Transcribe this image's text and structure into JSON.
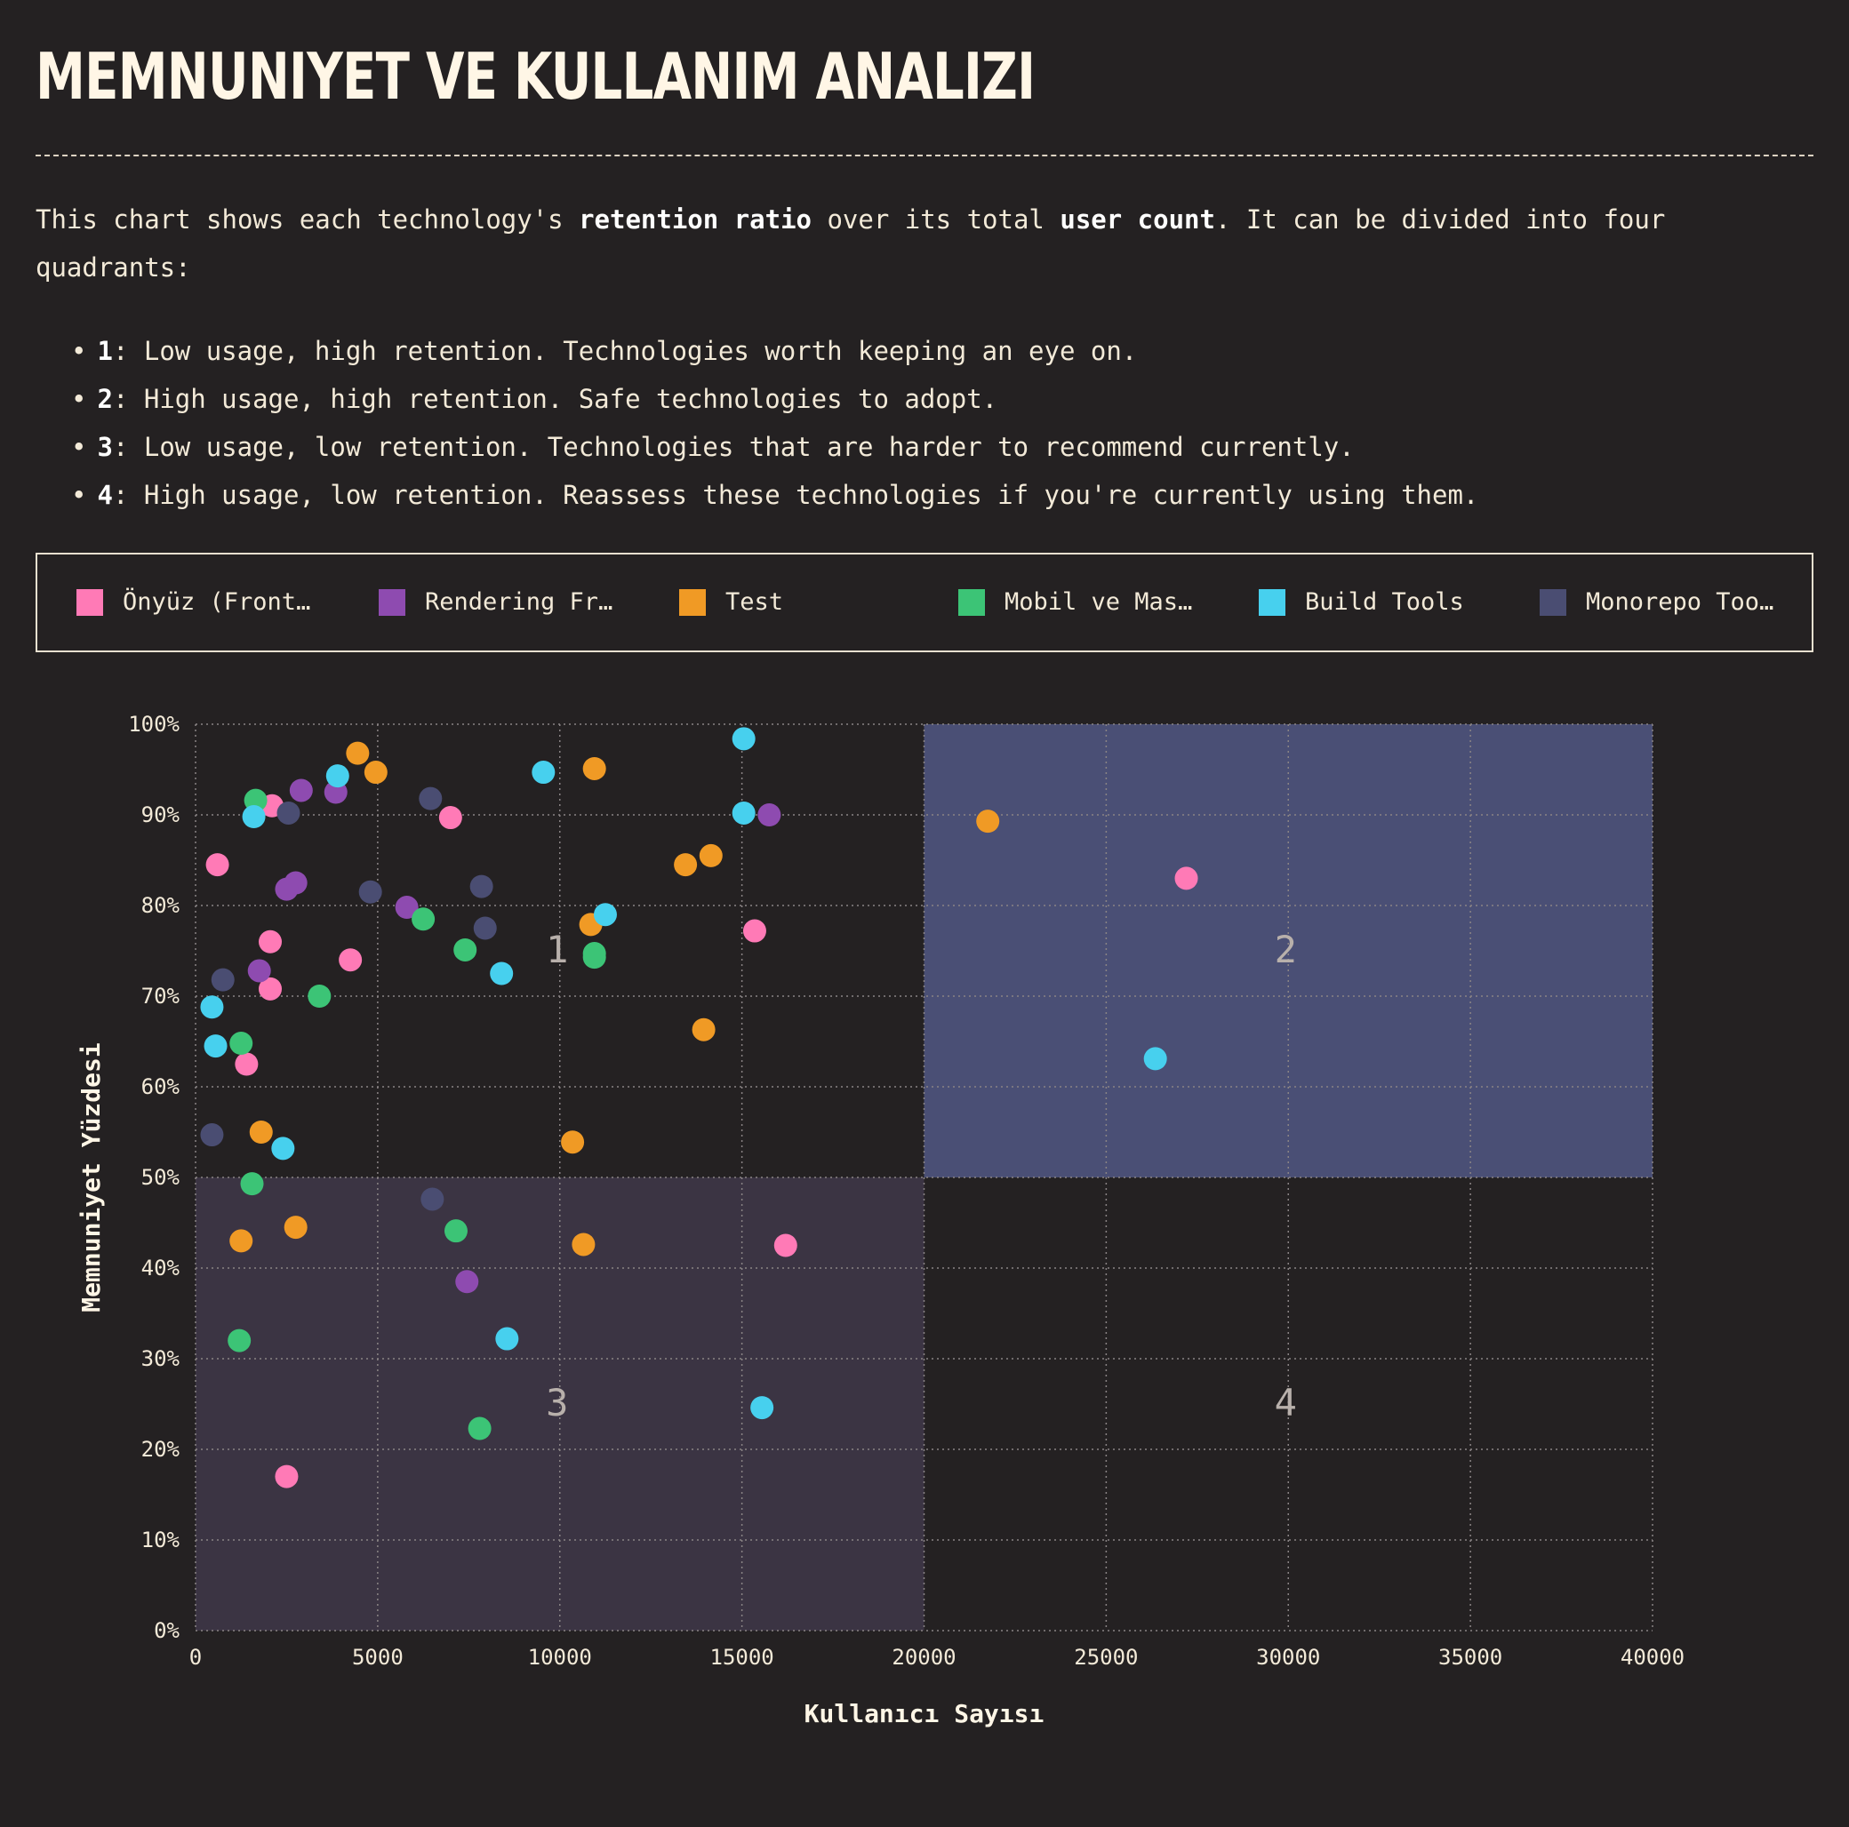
{
  "title": "MEMNUNIYET VE KULLANIM ANALIZI",
  "description": {
    "p1": "This chart shows each technology's ",
    "b1": "retention ratio",
    "p2": " over its total ",
    "b2": "user count",
    "p3": ". It can be divided into four quadrants:"
  },
  "bullets": [
    {
      "num": "1",
      "text": ": Low usage, high retention. Technologies worth keeping an eye on."
    },
    {
      "num": "2",
      "text": ": High usage, high retention. Safe technologies to adopt."
    },
    {
      "num": "3",
      "text": ": Low usage, low retention. Technologies that are harder to recommend currently."
    },
    {
      "num": "4",
      "text": ": High usage, low retention. Reassess these technologies if you're currently using them."
    }
  ],
  "legend": [
    {
      "label": "Önyüz (Front…",
      "color": "#ff7ab6"
    },
    {
      "label": "Rendering Fr…",
      "color": "#8e4bb0"
    },
    {
      "label": "Test",
      "color": "#f09a25"
    },
    {
      "label": "Mobil ve Mas…",
      "color": "#3cc476"
    },
    {
      "label": "Build Tools",
      "color": "#47d0ee"
    },
    {
      "label": "Monorepo Too…",
      "color": "#4a4d72"
    }
  ],
  "chart_data": {
    "type": "scatter",
    "xlabel": "Kullanıcı Sayısı",
    "ylabel": "Memnuniyet Yüzdesi",
    "xlim": [
      0,
      40000
    ],
    "ylim": [
      0,
      100
    ],
    "xticks": [
      "0",
      "5000",
      "10000",
      "15000",
      "20000",
      "25000",
      "30000",
      "35000",
      "40000"
    ],
    "yticks": [
      "0%",
      "10%",
      "20%",
      "30%",
      "40%",
      "50%",
      "60%",
      "70%",
      "80%",
      "90%",
      "100%"
    ],
    "grid": true,
    "quadrant_labels": [
      "1",
      "2",
      "3",
      "4"
    ],
    "quadrant_colors": {
      "q2": "#4a4f75",
      "q3": "#3b3443"
    },
    "series": [
      {
        "name": "Önyüz (Front…",
        "color": "#ff7ab6",
        "points": [
          [
            600,
            84.5
          ],
          [
            2100,
            91
          ],
          [
            2050,
            76
          ],
          [
            2050,
            70.8
          ],
          [
            1400,
            62.5
          ],
          [
            4250,
            74
          ],
          [
            7000,
            89.7
          ],
          [
            15350,
            77.2
          ],
          [
            27200,
            83
          ],
          [
            16200,
            42.5
          ],
          [
            2500,
            17
          ]
        ]
      },
      {
        "name": "Rendering Fr…",
        "color": "#8e4bb0",
        "points": [
          [
            2900,
            92.7
          ],
          [
            3850,
            92.5
          ],
          [
            2750,
            82.5
          ],
          [
            2500,
            81.8
          ],
          [
            1750,
            72.8
          ],
          [
            5800,
            79.8
          ],
          [
            15750,
            90
          ],
          [
            7450,
            38.5
          ]
        ]
      },
      {
        "name": "Test",
        "color": "#f09a25",
        "points": [
          [
            4450,
            96.8
          ],
          [
            4950,
            94.7
          ],
          [
            10950,
            95.1
          ],
          [
            13450,
            84.5
          ],
          [
            14150,
            85.5
          ],
          [
            10850,
            77.9
          ],
          [
            13950,
            66.3
          ],
          [
            10350,
            53.9
          ],
          [
            1800,
            55
          ],
          [
            1250,
            43
          ],
          [
            2750,
            44.5
          ],
          [
            10650,
            42.6
          ],
          [
            21750,
            89.3
          ]
        ]
      },
      {
        "name": "Mobil ve Mas…",
        "color": "#3cc476",
        "points": [
          [
            1650,
            91.6
          ],
          [
            6250,
            78.5
          ],
          [
            7400,
            75.1
          ],
          [
            10950,
            74.7
          ],
          [
            10950,
            74.3
          ],
          [
            3400,
            70
          ],
          [
            1250,
            64.8
          ],
          [
            1550,
            49.3
          ],
          [
            7150,
            44.1
          ],
          [
            1200,
            32
          ],
          [
            7800,
            22.3
          ]
        ]
      },
      {
        "name": "Build Tools",
        "color": "#47d0ee",
        "points": [
          [
            3900,
            94.3
          ],
          [
            1600,
            89.8
          ],
          [
            9550,
            94.7
          ],
          [
            15050,
            98.4
          ],
          [
            15050,
            90.2
          ],
          [
            11250,
            79
          ],
          [
            8400,
            72.5
          ],
          [
            450,
            68.8
          ],
          [
            550,
            64.5
          ],
          [
            2400,
            53.2
          ],
          [
            8550,
            32.2
          ],
          [
            15550,
            24.6
          ],
          [
            26350,
            63.1
          ]
        ]
      },
      {
        "name": "Monorepo Too…",
        "color": "#4a4d72",
        "points": [
          [
            2550,
            90.2
          ],
          [
            6450,
            91.8
          ],
          [
            4800,
            81.5
          ],
          [
            7850,
            82.1
          ],
          [
            7950,
            77.5
          ],
          [
            750,
            71.8
          ],
          [
            450,
            54.7
          ],
          [
            6500,
            47.6
          ]
        ]
      }
    ]
  }
}
